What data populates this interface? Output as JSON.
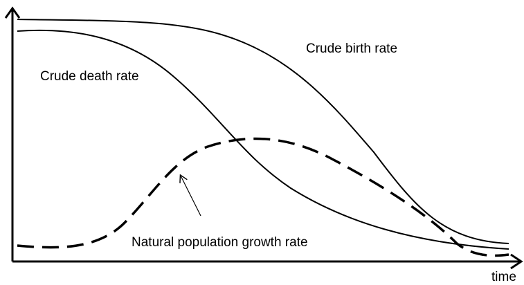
{
  "labels": {
    "birth": "Crude birth rate",
    "death": "Crude death rate",
    "growth": "Natural population growth rate",
    "time": "time"
  }
}
